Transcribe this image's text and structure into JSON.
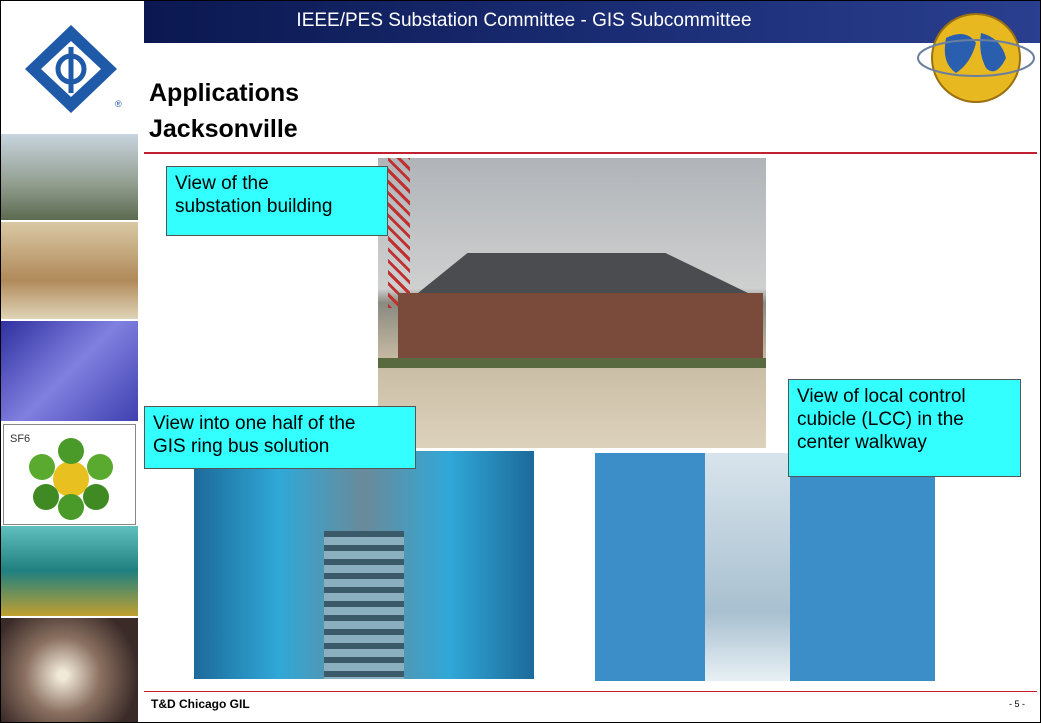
{
  "header": {
    "title": "IEEE/PES Substation Committee - GIS Subcommittee"
  },
  "slide": {
    "title_lines": [
      "Applications",
      "Jacksonville"
    ]
  },
  "sidebar": {
    "sf6_label": "SF6"
  },
  "captions": [
    {
      "lines": [
        "View of the",
        "substation building"
      ]
    },
    {
      "lines": [
        "View into one half of the",
        "GIS ring bus solution"
      ]
    },
    {
      "lines": [
        "View of local control",
        "cubicle (LCC) in the",
        "center walkway"
      ]
    }
  ],
  "footer": {
    "left": "T&D Chicago GIL",
    "page": "- 5 -"
  }
}
